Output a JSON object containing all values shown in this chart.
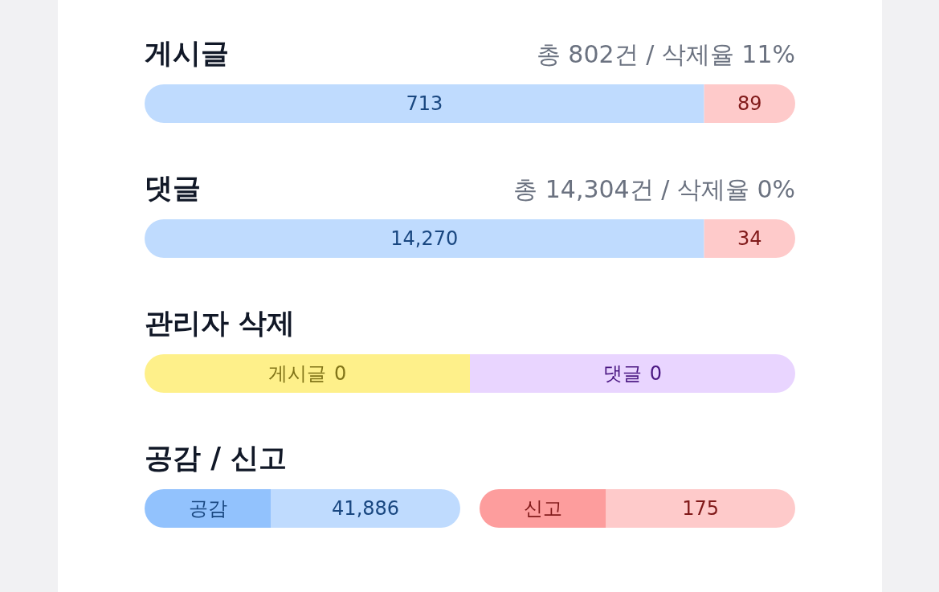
{
  "chart_data": [
    {
      "type": "other",
      "title": "게시글",
      "subtitle": "총 802건 / 삭제율 11%",
      "categories": [
        null,
        null
      ],
      "values": [
        713,
        89
      ],
      "value_labels": [
        "713",
        "89"
      ],
      "colors": [
        "#bfdbfe",
        "#fecaca"
      ]
    },
    {
      "type": "other",
      "title": "댓글",
      "subtitle": "총 14,304건 / 삭제율 0%",
      "categories": [
        null,
        null
      ],
      "values": [
        14270,
        34
      ],
      "value_labels": [
        "14,270",
        "34"
      ],
      "colors": [
        "#bfdbfe",
        "#fecaca"
      ]
    },
    {
      "type": "other",
      "title": "관리자 삭제",
      "categories": [
        "게시글",
        "댓글"
      ],
      "values": [
        0,
        0
      ],
      "colors": [
        "#fef08a",
        "#e9d5ff"
      ],
      "data_labels": true
    },
    {
      "type": "other",
      "title": "공감 / 신고",
      "categories": [
        "공감"
      ],
      "values": [
        41886
      ],
      "value_labels": [
        "41,886"
      ],
      "colors": [
        "#bfdbfe"
      ]
    },
    {
      "type": "other",
      "categories": [
        "신고"
      ],
      "values": [
        175
      ],
      "value_labels": [
        "175"
      ],
      "colors": [
        "#fecaca"
      ]
    }
  ]
}
